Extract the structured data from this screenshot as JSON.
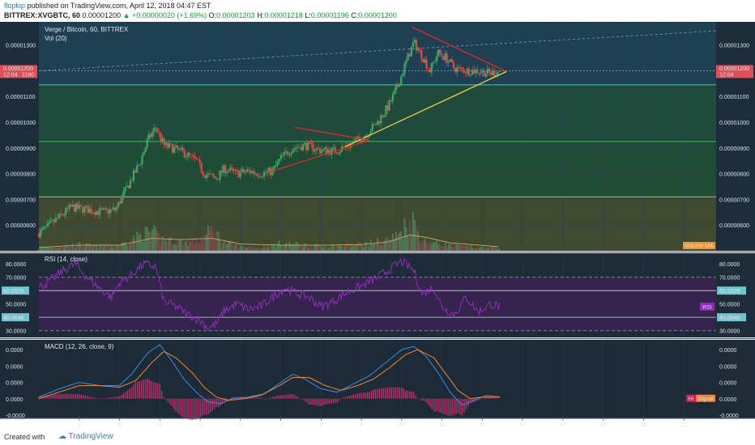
{
  "header": {
    "author": "flopkip",
    "published": "published on TradingView.com, April 12, 2018 04:47 EST",
    "symbol": "BITTREX:XVGBTC, 60",
    "last": "0.00001200",
    "change": "+0.00000020 (+1.69%)",
    "open_label": "O:",
    "open": "0.00001203",
    "high_label": "H:",
    "high": "0.00001218",
    "low_label": "L:",
    "low": "0.00001196",
    "close_label": "C:",
    "close": "0.00001200"
  },
  "price_pane": {
    "title": "Verge / Bitcoin, 60, BITTREX",
    "vol_label": "Vol (20)",
    "volume_ma_label": "Volume MA",
    "price_tag": "0.00001200",
    "time_tag": "12:04",
    "price_tag_left": "0.00001200",
    "time_tag_left": "12:04",
    "time_tag_left_extra": "1180",
    "y_ticks": [
      "0.00001300",
      "0.00001100",
      "0.00001000",
      "0.00000900",
      "0.00000800",
      "0.00000700",
      "0.00000600"
    ],
    "y_tick_values": [
      13.0,
      11.0,
      10.0,
      9.0,
      8.0,
      7.0,
      6.0
    ]
  },
  "rsi_pane": {
    "title": "RSI (14, close)",
    "y_ticks": [
      "80.0000",
      "70.0000",
      "50.0000",
      "30.0000"
    ],
    "y_tick_values": [
      80,
      70,
      50,
      30
    ],
    "upper_tag": "60.0329",
    "lower_tag": "40.0646",
    "rsi_tag": "RSI"
  },
  "macd_pane": {
    "title": "MACD (12, 26, close, 9)",
    "y_ticks": [
      "0.0000",
      "0.0000",
      "0.0000",
      "0.0000",
      "-0.0000"
    ],
    "hist_tag": "Hi",
    "signal_tag": "Signal"
  },
  "x_ticks": [
    "2",
    "3",
    "4",
    "5",
    "6",
    "7",
    "8",
    "9",
    "10",
    "11",
    "12",
    "13",
    "14",
    "15",
    "16",
    "17"
  ],
  "footer": {
    "created": "Created with",
    "brand": "TradingView"
  },
  "colors": {
    "bg": "#1d2d3c",
    "up": "#3bab63",
    "down": "#e0484f",
    "rsi": "#9a2fc2",
    "macd": "#3a8fe0",
    "signal": "#f28a30",
    "trend_red": "#e02a2a",
    "trend_yellow": "#f0d43a"
  },
  "chart_data": {
    "type": "candlestick",
    "title": "Verge / Bitcoin, 60, BITTREX",
    "x_unit": "day",
    "xlim": [
      1.0,
      17.8
    ],
    "price_ylim": [
      5.0,
      13.9
    ],
    "price_unit": "1e-6 BTC (0.000001 BTC)",
    "support_levels": [
      11.45,
      9.25,
      7.1
    ],
    "price_path": [
      [
        1.0,
        5.7
      ],
      [
        1.2,
        5.9
      ],
      [
        1.5,
        6.3
      ],
      [
        1.8,
        6.7
      ],
      [
        2.2,
        6.6
      ],
      [
        2.6,
        6.5
      ],
      [
        2.9,
        6.6
      ],
      [
        3.1,
        7.2
      ],
      [
        3.3,
        7.8
      ],
      [
        3.5,
        8.4
      ],
      [
        3.7,
        9.3
      ],
      [
        3.9,
        9.8
      ],
      [
        4.1,
        9.1
      ],
      [
        4.3,
        9.0
      ],
      [
        4.6,
        8.8
      ],
      [
        4.9,
        8.5
      ],
      [
        5.1,
        8.0
      ],
      [
        5.4,
        7.8
      ],
      [
        5.6,
        8.2
      ],
      [
        5.9,
        8.0
      ],
      [
        6.2,
        8.1
      ],
      [
        6.5,
        8.0
      ],
      [
        6.8,
        8.1
      ],
      [
        7.0,
        8.6
      ],
      [
        7.3,
        9.0
      ],
      [
        7.6,
        9.1
      ],
      [
        8.0,
        8.9
      ],
      [
        8.4,
        8.9
      ],
      [
        8.8,
        9.2
      ],
      [
        9.1,
        9.5
      ],
      [
        9.4,
        10.0
      ],
      [
        9.7,
        10.7
      ],
      [
        9.9,
        11.4
      ],
      [
        10.1,
        12.3
      ],
      [
        10.3,
        13.1
      ],
      [
        10.5,
        12.6
      ],
      [
        10.7,
        12.0
      ],
      [
        10.9,
        12.7
      ],
      [
        11.1,
        12.5
      ],
      [
        11.3,
        12.1
      ],
      [
        11.6,
        12.0
      ],
      [
        11.9,
        12.0
      ],
      [
        12.2,
        11.9
      ],
      [
        12.45,
        12.0
      ]
    ],
    "volume_path": [
      [
        1.0,
        0.3
      ],
      [
        1.5,
        0.4
      ],
      [
        2.0,
        0.6
      ],
      [
        2.5,
        0.4
      ],
      [
        3.0,
        0.5
      ],
      [
        3.5,
        1.4
      ],
      [
        3.8,
        1.8
      ],
      [
        4.0,
        1.2
      ],
      [
        4.5,
        0.8
      ],
      [
        5.0,
        0.9
      ],
      [
        5.3,
        2.0
      ],
      [
        5.6,
        0.8
      ],
      [
        6.0,
        0.4
      ],
      [
        6.5,
        0.3
      ],
      [
        7.0,
        0.7
      ],
      [
        7.5,
        0.6
      ],
      [
        8.0,
        0.4
      ],
      [
        8.5,
        0.5
      ],
      [
        9.0,
        0.6
      ],
      [
        9.5,
        0.9
      ],
      [
        9.9,
        1.4
      ],
      [
        10.1,
        2.4
      ],
      [
        10.3,
        2.8
      ],
      [
        10.5,
        1.0
      ],
      [
        11.0,
        0.6
      ],
      [
        11.5,
        0.4
      ],
      [
        12.0,
        0.3
      ],
      [
        12.45,
        0.3
      ]
    ],
    "volume_ma": [
      [
        1.0,
        0.3
      ],
      [
        2.0,
        0.5
      ],
      [
        3.0,
        0.5
      ],
      [
        3.8,
        1.1
      ],
      [
        4.5,
        1.0
      ],
      [
        5.3,
        1.1
      ],
      [
        6.0,
        0.6
      ],
      [
        7.0,
        0.5
      ],
      [
        8.0,
        0.5
      ],
      [
        9.0,
        0.55
      ],
      [
        9.7,
        0.8
      ],
      [
        10.2,
        1.4
      ],
      [
        10.6,
        1.2
      ],
      [
        11.2,
        0.7
      ],
      [
        12.45,
        0.35
      ]
    ],
    "trendlines": [
      {
        "color": "red",
        "from": [
          10.25,
          13.7
        ],
        "to": [
          12.6,
          11.97
        ]
      },
      {
        "color": "yellow",
        "from": [
          8.6,
          9.05
        ],
        "to": [
          12.6,
          11.97
        ]
      },
      {
        "color": "red",
        "from": [
          6.7,
          8.05
        ],
        "to": [
          9.2,
          9.3
        ]
      },
      {
        "color": "red",
        "from": [
          7.35,
          9.8
        ],
        "to": [
          9.2,
          9.3
        ]
      }
    ],
    "rsi_ylim": [
      25,
      88
    ],
    "rsi_bands": [
      30,
      70
    ],
    "rsi_levels": [
      40.0646,
      60.0329
    ],
    "rsi_path": [
      [
        1.0,
        62
      ],
      [
        1.3,
        68
      ],
      [
        1.6,
        75
      ],
      [
        1.9,
        80
      ],
      [
        2.2,
        70
      ],
      [
        2.5,
        62
      ],
      [
        2.8,
        55
      ],
      [
        3.0,
        66
      ],
      [
        3.3,
        72
      ],
      [
        3.6,
        80
      ],
      [
        3.9,
        78
      ],
      [
        4.1,
        52
      ],
      [
        4.4,
        48
      ],
      [
        4.7,
        42
      ],
      [
        5.0,
        38
      ],
      [
        5.2,
        32
      ],
      [
        5.4,
        35
      ],
      [
        5.6,
        45
      ],
      [
        5.9,
        50
      ],
      [
        6.2,
        46
      ],
      [
        6.5,
        48
      ],
      [
        6.8,
        55
      ],
      [
        7.1,
        62
      ],
      [
        7.4,
        58
      ],
      [
        7.7,
        55
      ],
      [
        8.0,
        48
      ],
      [
        8.3,
        52
      ],
      [
        8.6,
        58
      ],
      [
        8.9,
        62
      ],
      [
        9.1,
        65
      ],
      [
        9.4,
        70
      ],
      [
        9.7,
        76
      ],
      [
        10.0,
        82
      ],
      [
        10.3,
        75
      ],
      [
        10.5,
        58
      ],
      [
        10.8,
        62
      ],
      [
        11.0,
        48
      ],
      [
        11.3,
        42
      ],
      [
        11.6,
        55
      ],
      [
        11.9,
        44
      ],
      [
        12.2,
        50
      ],
      [
        12.45,
        48
      ]
    ],
    "macd_ylim": [
      -1.2,
      3.6
    ],
    "macd_path": [
      [
        1.0,
        0.1
      ],
      [
        1.5,
        0.6
      ],
      [
        2.0,
        1.0
      ],
      [
        2.5,
        0.8
      ],
      [
        3.0,
        0.8
      ],
      [
        3.3,
        1.5
      ],
      [
        3.7,
        2.8
      ],
      [
        4.0,
        3.3
      ],
      [
        4.3,
        2.3
      ],
      [
        4.6,
        1.2
      ],
      [
        4.9,
        0.4
      ],
      [
        5.2,
        -0.2
      ],
      [
        5.5,
        -0.3
      ],
      [
        5.8,
        0.0
      ],
      [
        6.2,
        0.1
      ],
      [
        6.6,
        0.3
      ],
      [
        7.0,
        1.0
      ],
      [
        7.3,
        1.5
      ],
      [
        7.6,
        1.2
      ],
      [
        8.0,
        0.6
      ],
      [
        8.4,
        0.4
      ],
      [
        8.8,
        0.9
      ],
      [
        9.2,
        1.4
      ],
      [
        9.6,
        2.2
      ],
      [
        10.0,
        3.0
      ],
      [
        10.3,
        3.2
      ],
      [
        10.6,
        2.6
      ],
      [
        10.9,
        1.6
      ],
      [
        11.2,
        0.4
      ],
      [
        11.5,
        -0.4
      ],
      [
        11.8,
        -0.1
      ],
      [
        12.1,
        0.2
      ],
      [
        12.45,
        0.1
      ]
    ],
    "signal_path": [
      [
        1.0,
        0.0
      ],
      [
        1.5,
        0.4
      ],
      [
        2.0,
        0.8
      ],
      [
        2.5,
        0.8
      ],
      [
        3.0,
        0.7
      ],
      [
        3.4,
        1.1
      ],
      [
        3.8,
        2.2
      ],
      [
        4.1,
        2.9
      ],
      [
        4.4,
        2.5
      ],
      [
        4.8,
        1.6
      ],
      [
        5.1,
        0.7
      ],
      [
        5.4,
        0.1
      ],
      [
        5.7,
        -0.1
      ],
      [
        6.1,
        0.0
      ],
      [
        6.5,
        0.2
      ],
      [
        6.9,
        0.7
      ],
      [
        7.3,
        1.3
      ],
      [
        7.7,
        1.3
      ],
      [
        8.1,
        0.8
      ],
      [
        8.5,
        0.5
      ],
      [
        8.9,
        0.8
      ],
      [
        9.3,
        1.2
      ],
      [
        9.7,
        1.9
      ],
      [
        10.1,
        2.7
      ],
      [
        10.4,
        3.0
      ],
      [
        10.8,
        2.5
      ],
      [
        11.1,
        1.5
      ],
      [
        11.4,
        0.5
      ],
      [
        11.7,
        0.0
      ],
      [
        12.0,
        0.1
      ],
      [
        12.45,
        0.1
      ]
    ]
  }
}
